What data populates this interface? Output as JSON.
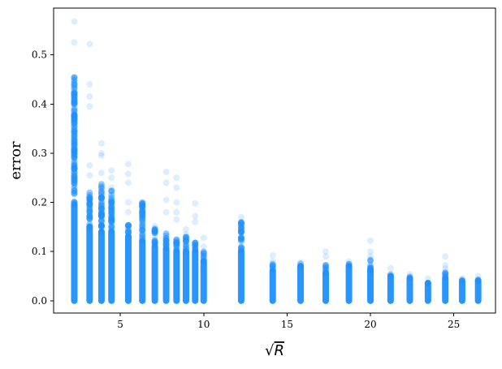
{
  "chart_data": {
    "type": "scatter",
    "title": "",
    "xlabel_radical": "√",
    "xlabel_var": "R",
    "ylabel": "error",
    "xlim": [
      1.0,
      27.5
    ],
    "ylim": [
      -0.025,
      0.595
    ],
    "xticks": [
      5,
      10,
      15,
      20,
      25
    ],
    "xtick_labels": [
      "5",
      "10",
      "15",
      "20",
      "25"
    ],
    "yticks": [
      0.0,
      0.1,
      0.2,
      0.3,
      0.4,
      0.5
    ],
    "ytick_labels": [
      "0.0",
      "0.1",
      "0.2",
      "0.3",
      "0.4",
      "0.5"
    ],
    "grid": false,
    "marker_color": "#1e90ff",
    "marker_alpha": 0.15,
    "series": [
      {
        "columns": [
          {
            "x": 2.24,
            "dense_max": 0.195,
            "spread_max": 0.455,
            "outliers": [
              0.568,
              0.525,
              0.45,
              0.42,
              0.4,
              0.38,
              0.36,
              0.34,
              0.315,
              0.31,
              0.28,
              0.25,
              0.24,
              0.22
            ]
          },
          {
            "x": 3.16,
            "dense_max": 0.15,
            "spread_max": 0.22,
            "outliers": [
              0.522,
              0.44,
              0.415,
              0.395,
              0.275,
              0.255,
              0.2,
              0.19
            ]
          },
          {
            "x": 3.87,
            "dense_max": 0.14,
            "spread_max": 0.24,
            "outliers": [
              0.32,
              0.3,
              0.295,
              0.26,
              0.23,
              0.18
            ]
          },
          {
            "x": 4.47,
            "dense_max": 0.14,
            "spread_max": 0.225,
            "outliers": [
              0.265,
              0.25,
              0.23
            ]
          },
          {
            "x": 5.48,
            "dense_max": 0.13,
            "spread_max": 0.155,
            "outliers": [
              0.278,
              0.258,
              0.24,
              0.2,
              0.18,
              0.15
            ]
          },
          {
            "x": 6.32,
            "dense_max": 0.12,
            "spread_max": 0.2,
            "outliers": [
              0.2,
              0.19,
              0.175,
              0.15
            ]
          },
          {
            "x": 7.07,
            "dense_max": 0.11,
            "spread_max": 0.15,
            "outliers": [
              0.152,
              0.13
            ]
          },
          {
            "x": 7.75,
            "dense_max": 0.105,
            "spread_max": 0.14,
            "outliers": [
              0.262,
              0.24,
              0.205,
              0.18
            ]
          },
          {
            "x": 8.37,
            "dense_max": 0.1,
            "spread_max": 0.13,
            "outliers": [
              0.25,
              0.23,
              0.2,
              0.18,
              0.165
            ]
          },
          {
            "x": 8.94,
            "dense_max": 0.1,
            "spread_max": 0.13,
            "outliers": [
              0.145,
              0.135
            ]
          },
          {
            "x": 9.49,
            "dense_max": 0.1,
            "spread_max": 0.125,
            "outliers": [
              0.198,
              0.172,
              0.16
            ]
          },
          {
            "x": 10.0,
            "dense_max": 0.08,
            "spread_max": 0.1,
            "outliers": [
              0.128,
              0.11
            ]
          },
          {
            "x": 12.25,
            "dense_max": 0.1,
            "spread_max": 0.16,
            "outliers": [
              0.17,
              0.158,
              0.14,
              0.125
            ]
          },
          {
            "x": 14.14,
            "dense_max": 0.06,
            "spread_max": 0.075,
            "outliers": [
              0.092,
              0.08
            ]
          },
          {
            "x": 15.81,
            "dense_max": 0.07,
            "spread_max": 0.077,
            "outliers": [
              0.078
            ]
          },
          {
            "x": 17.32,
            "dense_max": 0.055,
            "spread_max": 0.075,
            "outliers": [
              0.1,
              0.09
            ]
          },
          {
            "x": 18.71,
            "dense_max": 0.07,
            "spread_max": 0.077,
            "outliers": [
              0.08
            ]
          },
          {
            "x": 20.0,
            "dense_max": 0.06,
            "spread_max": 0.085,
            "outliers": [
              0.122,
              0.1,
              0.09
            ]
          },
          {
            "x": 21.21,
            "dense_max": 0.05,
            "spread_max": 0.055,
            "outliers": [
              0.066
            ]
          },
          {
            "x": 22.36,
            "dense_max": 0.045,
            "spread_max": 0.05,
            "outliers": [
              0.054
            ]
          },
          {
            "x": 23.45,
            "dense_max": 0.035,
            "spread_max": 0.042,
            "outliers": [
              0.045
            ]
          },
          {
            "x": 24.49,
            "dense_max": 0.045,
            "spread_max": 0.06,
            "outliers": [
              0.09,
              0.072,
              0.065
            ]
          },
          {
            "x": 25.5,
            "dense_max": 0.04,
            "spread_max": 0.043,
            "outliers": [
              0.045
            ]
          },
          {
            "x": 26.46,
            "dense_max": 0.04,
            "spread_max": 0.048,
            "outliers": [
              0.05
            ]
          }
        ]
      }
    ]
  }
}
